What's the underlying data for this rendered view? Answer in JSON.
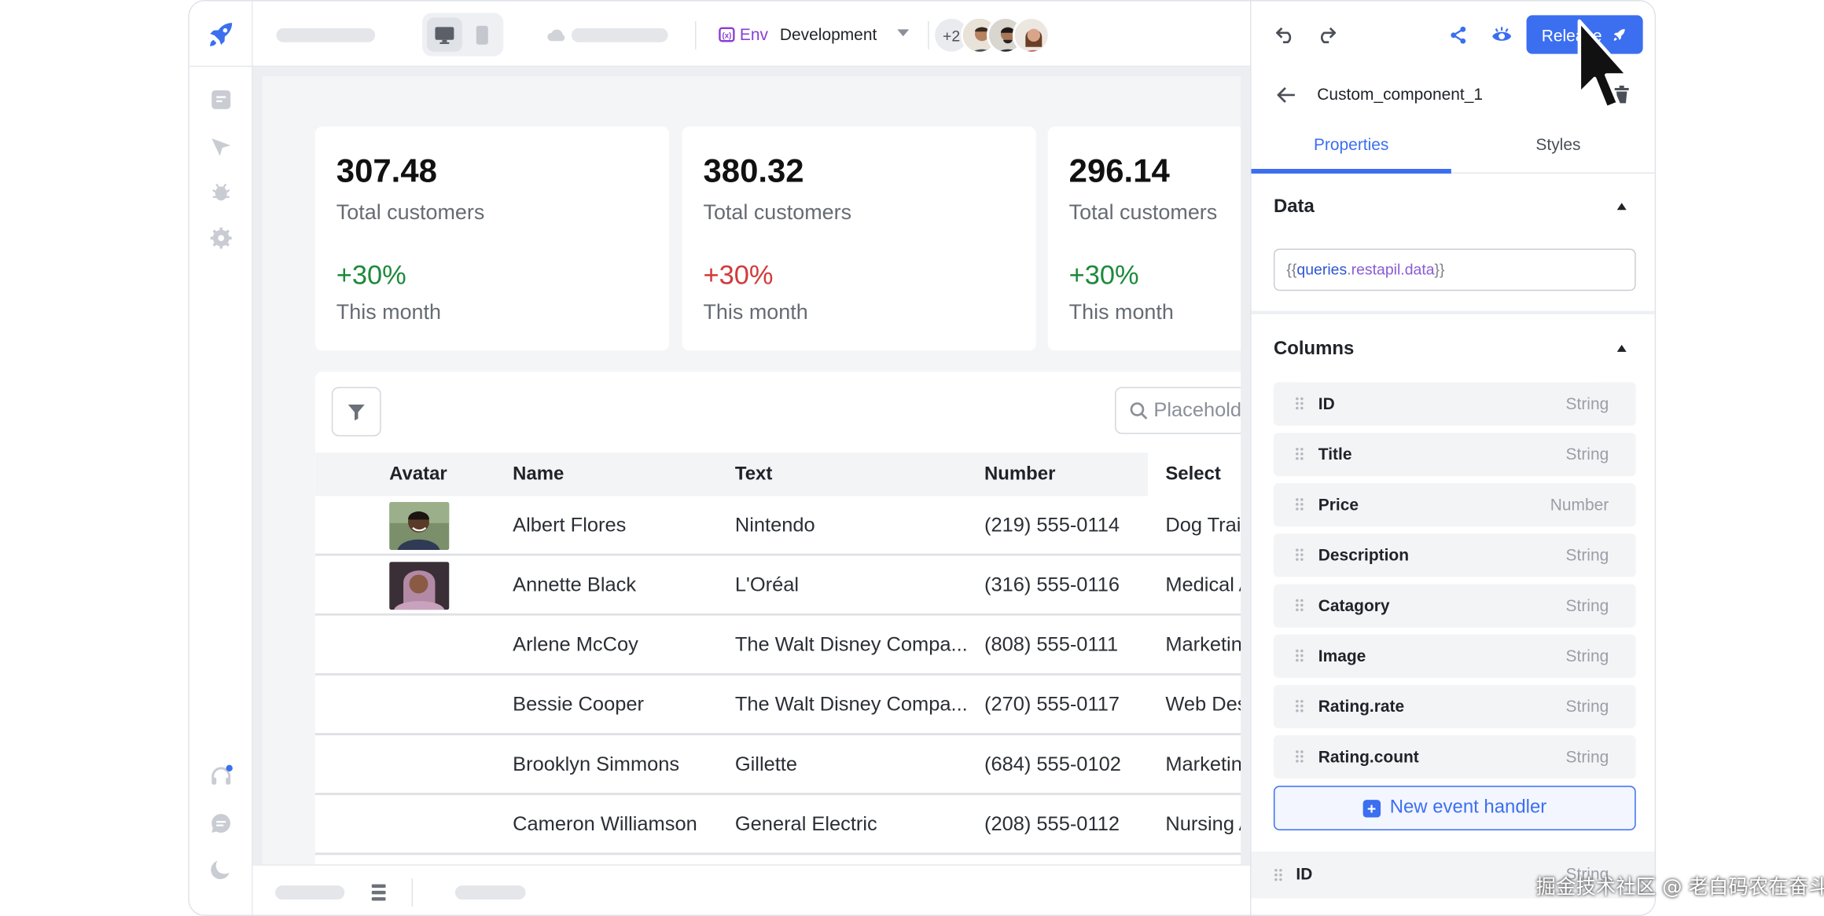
{
  "topbar": {
    "env_label": "Env",
    "env_value": "Development",
    "collaborators_more": "+2"
  },
  "stats": [
    {
      "value": "307.48",
      "label": "Total customers",
      "delta": "+30%",
      "delta_color": "#1d8a3b",
      "period": "This month"
    },
    {
      "value": "380.32",
      "label": "Total customers",
      "delta": "+30%",
      "delta_color": "#d23b3b",
      "period": "This month"
    },
    {
      "value": "296.14",
      "label": "Total customers",
      "delta": "+30%",
      "delta_color": "#1d8a3b",
      "period": "This month"
    }
  ],
  "table": {
    "search_placeholder": "Placeholder",
    "columns": [
      "Avatar",
      "Name",
      "Text",
      "Number",
      "Select"
    ],
    "rows": [
      {
        "name": "Albert Flores",
        "text": "Nintendo",
        "number": "(219) 555-0114",
        "select": "Dog Trainer"
      },
      {
        "name": "Annette Black",
        "text": "L'Oréal",
        "number": "(316) 555-0116",
        "select": "Medical Assistant"
      },
      {
        "name": "Arlene McCoy",
        "text": "The Walt Disney Compa...",
        "number": "(808) 555-0111",
        "select": "Marketing Coordinator"
      },
      {
        "name": "Bessie Cooper",
        "text": "The Walt Disney Compa...",
        "number": "(270) 555-0117",
        "select": "Web Designer"
      },
      {
        "name": "Brooklyn Simmons",
        "text": "Gillette",
        "number": "(684) 555-0102",
        "select": "Marketing Coordinator"
      },
      {
        "name": "Cameron Williamson",
        "text": "General Electric",
        "number": "(208) 555-0112",
        "select": "Nursing Assistant"
      }
    ]
  },
  "panel": {
    "release_label": "Release",
    "component_name": "Custom_component_1",
    "tabs": [
      "Properties",
      "Styles"
    ],
    "data_section_title": "Data",
    "data_binding": {
      "open": "{{",
      "object": "queries",
      "dot": ".",
      "path": "restapil.data",
      "close": "}}"
    },
    "columns_section_title": "Columns",
    "columns": [
      {
        "name": "ID",
        "type": "String"
      },
      {
        "name": "Title",
        "type": "String"
      },
      {
        "name": "Price",
        "type": "Number"
      },
      {
        "name": "Description",
        "type": "String"
      },
      {
        "name": "Catagory",
        "type": "String"
      },
      {
        "name": "Image",
        "type": "String"
      },
      {
        "name": "Rating.rate",
        "type": "String"
      },
      {
        "name": "Rating.count",
        "type": "String"
      }
    ],
    "new_event_handler_label": "New event handler",
    "bottom_row": {
      "name": "ID",
      "type": "String"
    }
  },
  "watermark": "掘金技术社区 @ 老白码农在奋斗",
  "colors": {
    "accent": "#3b6ff0",
    "env": "#8a3fd1",
    "positive": "#1d8a3b",
    "negative": "#d23b3b"
  }
}
